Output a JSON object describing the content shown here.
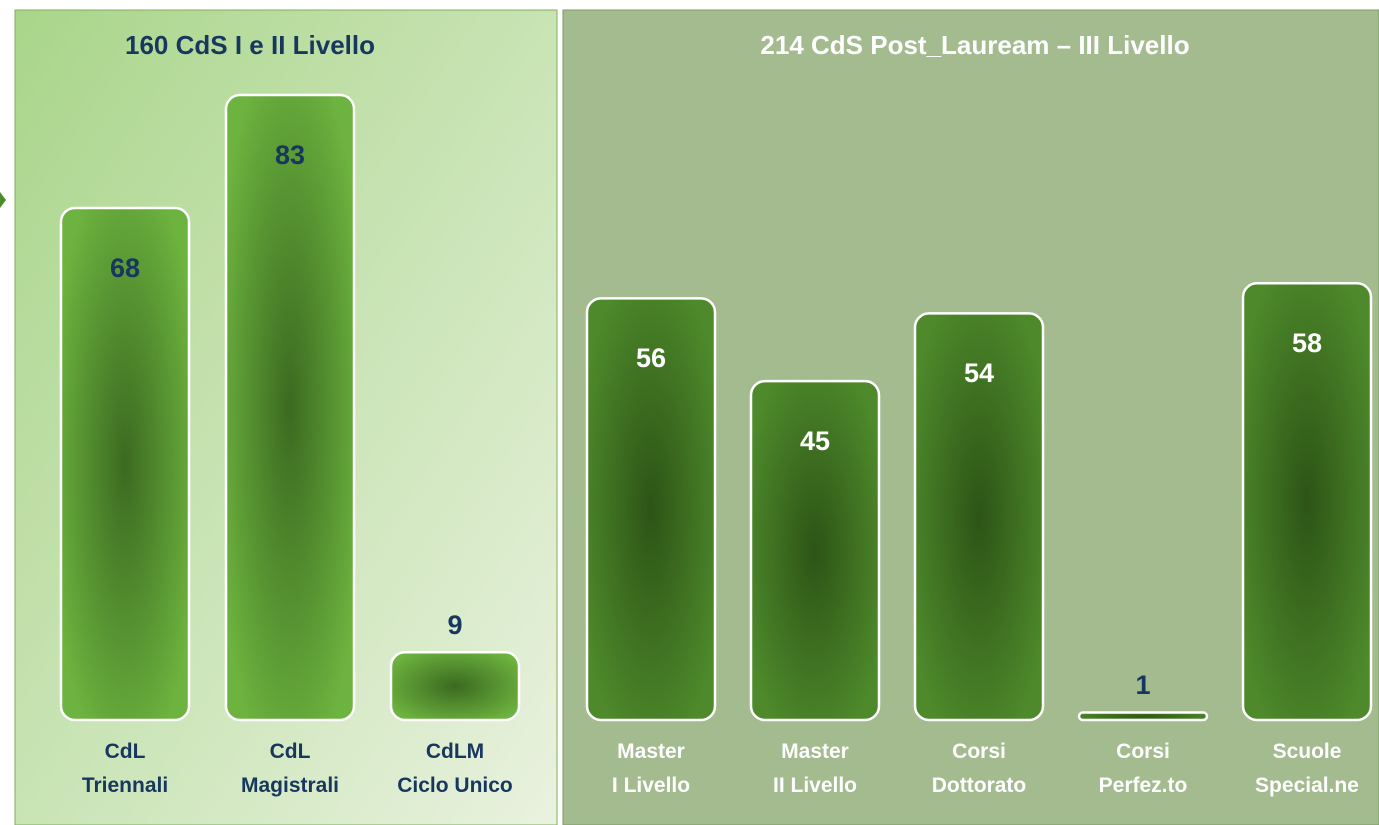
{
  "chart_data": [
    {
      "type": "bar",
      "title": "160 CdS I e II Livello",
      "categories": [
        "CdL\nTriennali",
        "CdL\nMagistrali",
        "CdLM\nCiclo Unico"
      ],
      "values": [
        68,
        83,
        9
      ],
      "color": "#6db33f"
    },
    {
      "type": "bar",
      "title": "214 CdS Post_Lauream – III Livello",
      "categories": [
        "Master\nI Livello",
        "Master\nII Livello",
        "Corsi\nDottorato",
        "Corsi\nPerfez.to",
        "Scuole\nSpecial.ne"
      ],
      "values": [
        56,
        45,
        54,
        1,
        58
      ],
      "color": "#4e8a2b"
    }
  ]
}
